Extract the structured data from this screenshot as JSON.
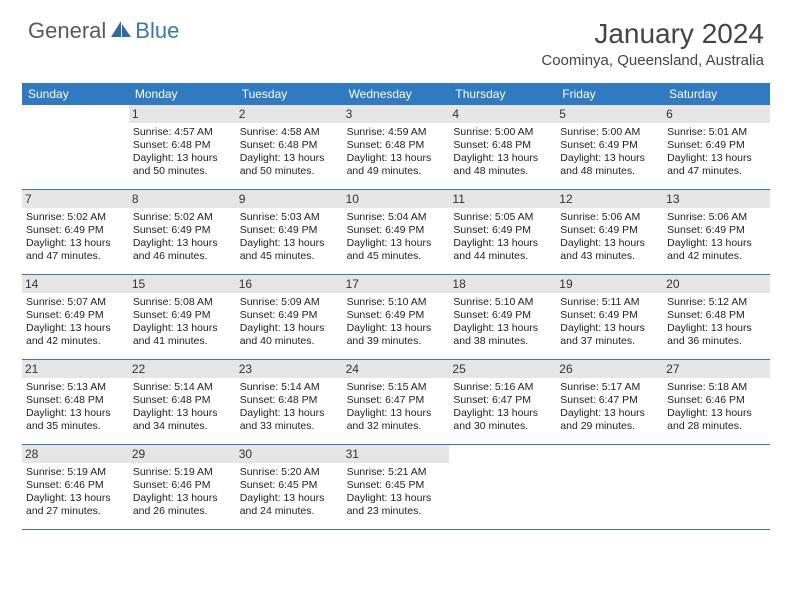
{
  "brand": {
    "part1": "General",
    "part2": "Blue"
  },
  "title": "January 2024",
  "location": "Coominya, Queensland, Australia",
  "colors": {
    "accent": "#2f7ac0",
    "daynum_bg": "#e5e5e5",
    "text": "#333333",
    "logo_gray": "#555a5e",
    "logo_blue": "#3a78b5"
  },
  "daynames": [
    "Sunday",
    "Monday",
    "Tuesday",
    "Wednesday",
    "Thursday",
    "Friday",
    "Saturday"
  ],
  "weeks": [
    [
      {
        "n": "",
        "sr": "",
        "ss": "",
        "dl": ""
      },
      {
        "n": "1",
        "sr": "4:57 AM",
        "ss": "6:48 PM",
        "dl": "13 hours and 50 minutes."
      },
      {
        "n": "2",
        "sr": "4:58 AM",
        "ss": "6:48 PM",
        "dl": "13 hours and 50 minutes."
      },
      {
        "n": "3",
        "sr": "4:59 AM",
        "ss": "6:48 PM",
        "dl": "13 hours and 49 minutes."
      },
      {
        "n": "4",
        "sr": "5:00 AM",
        "ss": "6:48 PM",
        "dl": "13 hours and 48 minutes."
      },
      {
        "n": "5",
        "sr": "5:00 AM",
        "ss": "6:49 PM",
        "dl": "13 hours and 48 minutes."
      },
      {
        "n": "6",
        "sr": "5:01 AM",
        "ss": "6:49 PM",
        "dl": "13 hours and 47 minutes."
      }
    ],
    [
      {
        "n": "7",
        "sr": "5:02 AM",
        "ss": "6:49 PM",
        "dl": "13 hours and 47 minutes."
      },
      {
        "n": "8",
        "sr": "5:02 AM",
        "ss": "6:49 PM",
        "dl": "13 hours and 46 minutes."
      },
      {
        "n": "9",
        "sr": "5:03 AM",
        "ss": "6:49 PM",
        "dl": "13 hours and 45 minutes."
      },
      {
        "n": "10",
        "sr": "5:04 AM",
        "ss": "6:49 PM",
        "dl": "13 hours and 45 minutes."
      },
      {
        "n": "11",
        "sr": "5:05 AM",
        "ss": "6:49 PM",
        "dl": "13 hours and 44 minutes."
      },
      {
        "n": "12",
        "sr": "5:06 AM",
        "ss": "6:49 PM",
        "dl": "13 hours and 43 minutes."
      },
      {
        "n": "13",
        "sr": "5:06 AM",
        "ss": "6:49 PM",
        "dl": "13 hours and 42 minutes."
      }
    ],
    [
      {
        "n": "14",
        "sr": "5:07 AM",
        "ss": "6:49 PM",
        "dl": "13 hours and 42 minutes."
      },
      {
        "n": "15",
        "sr": "5:08 AM",
        "ss": "6:49 PM",
        "dl": "13 hours and 41 minutes."
      },
      {
        "n": "16",
        "sr": "5:09 AM",
        "ss": "6:49 PM",
        "dl": "13 hours and 40 minutes."
      },
      {
        "n": "17",
        "sr": "5:10 AM",
        "ss": "6:49 PM",
        "dl": "13 hours and 39 minutes."
      },
      {
        "n": "18",
        "sr": "5:10 AM",
        "ss": "6:49 PM",
        "dl": "13 hours and 38 minutes."
      },
      {
        "n": "19",
        "sr": "5:11 AM",
        "ss": "6:49 PM",
        "dl": "13 hours and 37 minutes."
      },
      {
        "n": "20",
        "sr": "5:12 AM",
        "ss": "6:48 PM",
        "dl": "13 hours and 36 minutes."
      }
    ],
    [
      {
        "n": "21",
        "sr": "5:13 AM",
        "ss": "6:48 PM",
        "dl": "13 hours and 35 minutes."
      },
      {
        "n": "22",
        "sr": "5:14 AM",
        "ss": "6:48 PM",
        "dl": "13 hours and 34 minutes."
      },
      {
        "n": "23",
        "sr": "5:14 AM",
        "ss": "6:48 PM",
        "dl": "13 hours and 33 minutes."
      },
      {
        "n": "24",
        "sr": "5:15 AM",
        "ss": "6:47 PM",
        "dl": "13 hours and 32 minutes."
      },
      {
        "n": "25",
        "sr": "5:16 AM",
        "ss": "6:47 PM",
        "dl": "13 hours and 30 minutes."
      },
      {
        "n": "26",
        "sr": "5:17 AM",
        "ss": "6:47 PM",
        "dl": "13 hours and 29 minutes."
      },
      {
        "n": "27",
        "sr": "5:18 AM",
        "ss": "6:46 PM",
        "dl": "13 hours and 28 minutes."
      }
    ],
    [
      {
        "n": "28",
        "sr": "5:19 AM",
        "ss": "6:46 PM",
        "dl": "13 hours and 27 minutes."
      },
      {
        "n": "29",
        "sr": "5:19 AM",
        "ss": "6:46 PM",
        "dl": "13 hours and 26 minutes."
      },
      {
        "n": "30",
        "sr": "5:20 AM",
        "ss": "6:45 PM",
        "dl": "13 hours and 24 minutes."
      },
      {
        "n": "31",
        "sr": "5:21 AM",
        "ss": "6:45 PM",
        "dl": "13 hours and 23 minutes."
      },
      {
        "n": "",
        "sr": "",
        "ss": "",
        "dl": ""
      },
      {
        "n": "",
        "sr": "",
        "ss": "",
        "dl": ""
      },
      {
        "n": "",
        "sr": "",
        "ss": "",
        "dl": ""
      }
    ]
  ],
  "labels": {
    "sunrise": "Sunrise:",
    "sunset": "Sunset:",
    "daylight": "Daylight:"
  }
}
